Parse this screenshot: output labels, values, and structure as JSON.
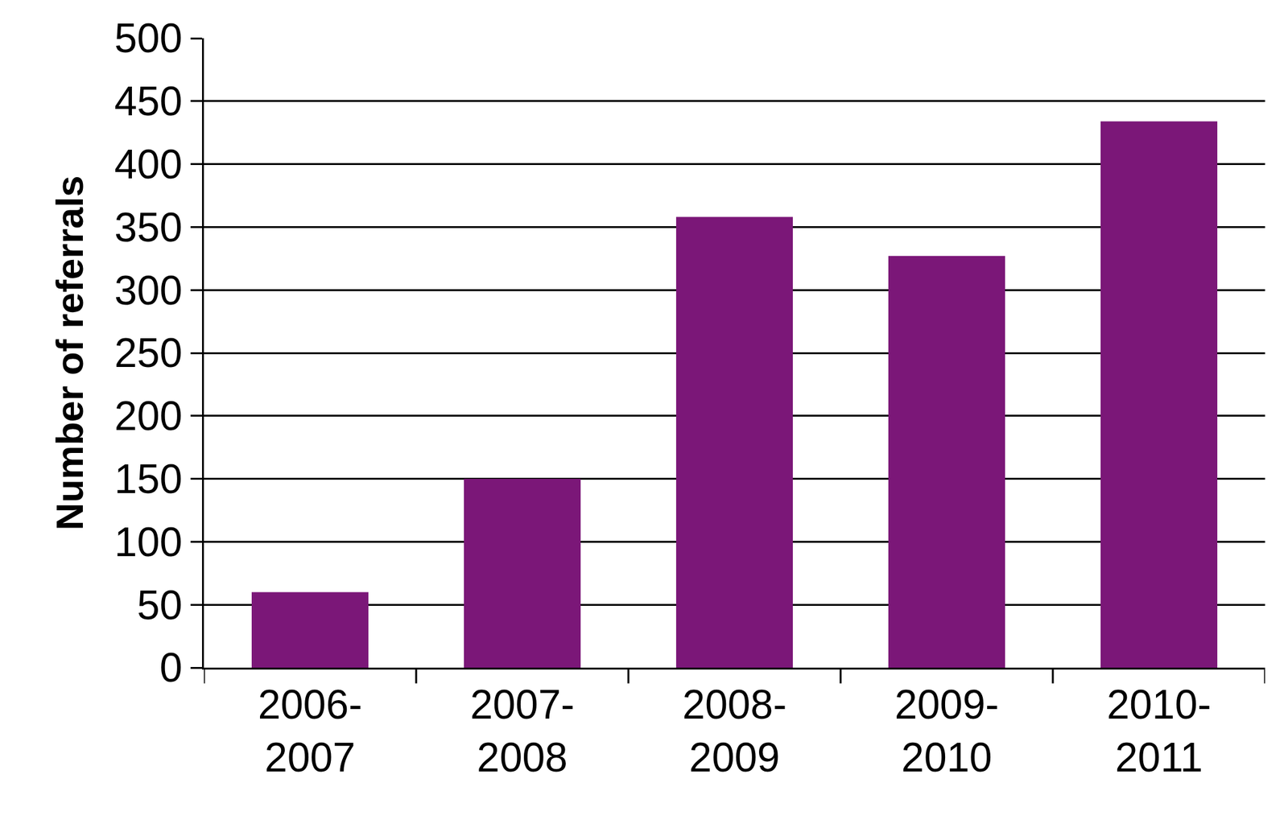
{
  "chart_data": {
    "type": "bar",
    "categories": [
      "2006-\n2007",
      "2007-\n2008",
      "2008-\n2009",
      "2009-\n2010",
      "2010-\n2011"
    ],
    "values": [
      60,
      150,
      358,
      327,
      434
    ],
    "color": "#7b1778",
    "y_label": "Number of referrals",
    "ylim": [
      0,
      500
    ],
    "yticks": [
      0,
      50,
      100,
      150,
      200,
      250,
      300,
      350,
      400,
      450,
      500
    ],
    "grid": true
  }
}
